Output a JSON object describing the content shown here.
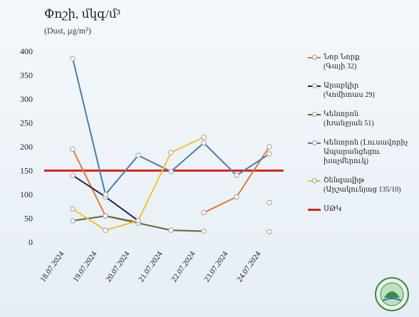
{
  "chart_data": {
    "type": "line",
    "title": "Փոշի, մկգ/մ³",
    "subtitle": "(Dust, µg/m³)",
    "categories": [
      "18.07.2024",
      "19.07.2024",
      "20.07.2024",
      "21.07.2024",
      "22.07.2024",
      "23.07.2024",
      "24.07.2024"
    ],
    "ylim": [
      0,
      400
    ],
    "yticks": [
      0,
      50,
      100,
      150,
      200,
      250,
      300,
      350,
      400
    ],
    "grid": false,
    "legend_position": "right",
    "series": [
      {
        "name": "Նոր Նորք\n(Գայի 32)",
        "color": "#e07b39",
        "values": [
          195,
          55,
          42,
          null,
          62,
          95,
          200
        ]
      },
      {
        "name": "Արաբկիր\n(Կոմիտաս 29)",
        "color": "#1f2a44",
        "values": [
          140,
          95,
          45,
          null,
          null,
          null,
          null
        ]
      },
      {
        "name": "Կենտրոն\n(Խանջյան 51)",
        "color": "#5a6b2e",
        "values": [
          45,
          55,
          40,
          25,
          23,
          null,
          22
        ]
      },
      {
        "name": "Կենտրոն (Լուսավորիչ\nԱպարանցեցու\nխաչմերուկ)",
        "color": "#4a7ab5",
        "values": [
          385,
          100,
          182,
          148,
          208,
          140,
          185
        ]
      },
      {
        "name": "Շենգավիթ\n(Արշակունյաց 135/10)",
        "color": "#f0c232",
        "values": [
          70,
          25,
          45,
          188,
          220,
          null,
          83
        ]
      }
    ],
    "threshold": {
      "name": "ՍԹԿ",
      "value": 150,
      "color": "#e02020"
    }
  }
}
